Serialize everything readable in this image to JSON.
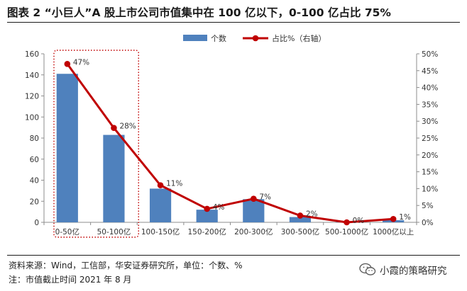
{
  "header": {
    "title": "图表 2 “小巨人”A 股上市公司市值集中在 100 亿以下，0-100 亿占比 75%"
  },
  "chart_data": {
    "type": "bar+line",
    "categories": [
      "0-50亿",
      "50-100亿",
      "100-150亿",
      "150-200亿",
      "200-300亿",
      "300-500亿",
      "500-1000亿",
      "1000亿以上"
    ],
    "series": [
      {
        "name": "个数",
        "type": "bar",
        "axis": "left",
        "color": "#4F81BD",
        "values": [
          141,
          83,
          32,
          12,
          22,
          5,
          1,
          2
        ]
      },
      {
        "name": "占比%（右轴）",
        "type": "line",
        "axis": "right",
        "color": "#C00000",
        "values": [
          47,
          28,
          11,
          4,
          7,
          2,
          0,
          1
        ],
        "labels": [
          "47%",
          "28%",
          "11%",
          "4%",
          "7%",
          "2%",
          "0%",
          "1%"
        ]
      }
    ],
    "y_left": {
      "min": 0,
      "max": 160,
      "step": 20,
      "ticks": [
        "0",
        "20",
        "40",
        "60",
        "80",
        "100",
        "120",
        "140",
        "160"
      ]
    },
    "y_right": {
      "min": 0,
      "max": 50,
      "step": 5,
      "ticks": [
        "0%",
        "5%",
        "10%",
        "15%",
        "20%",
        "25%",
        "30%",
        "35%",
        "40%",
        "45%",
        "50%"
      ]
    },
    "legend": {
      "placement": "top-center"
    },
    "highlight": {
      "categories": [
        "0-50亿",
        "50-100亿"
      ],
      "style": "dotted-box",
      "color": "#C00000"
    }
  },
  "footer": {
    "source": "资料来源：Wind，工信部，华安证券研究所，单位：个数、%",
    "note": "注：市值截止时间 2021 年 8 月"
  },
  "watermark": {
    "text": "小霞的策略研究",
    "icon": "wechat-icon"
  }
}
